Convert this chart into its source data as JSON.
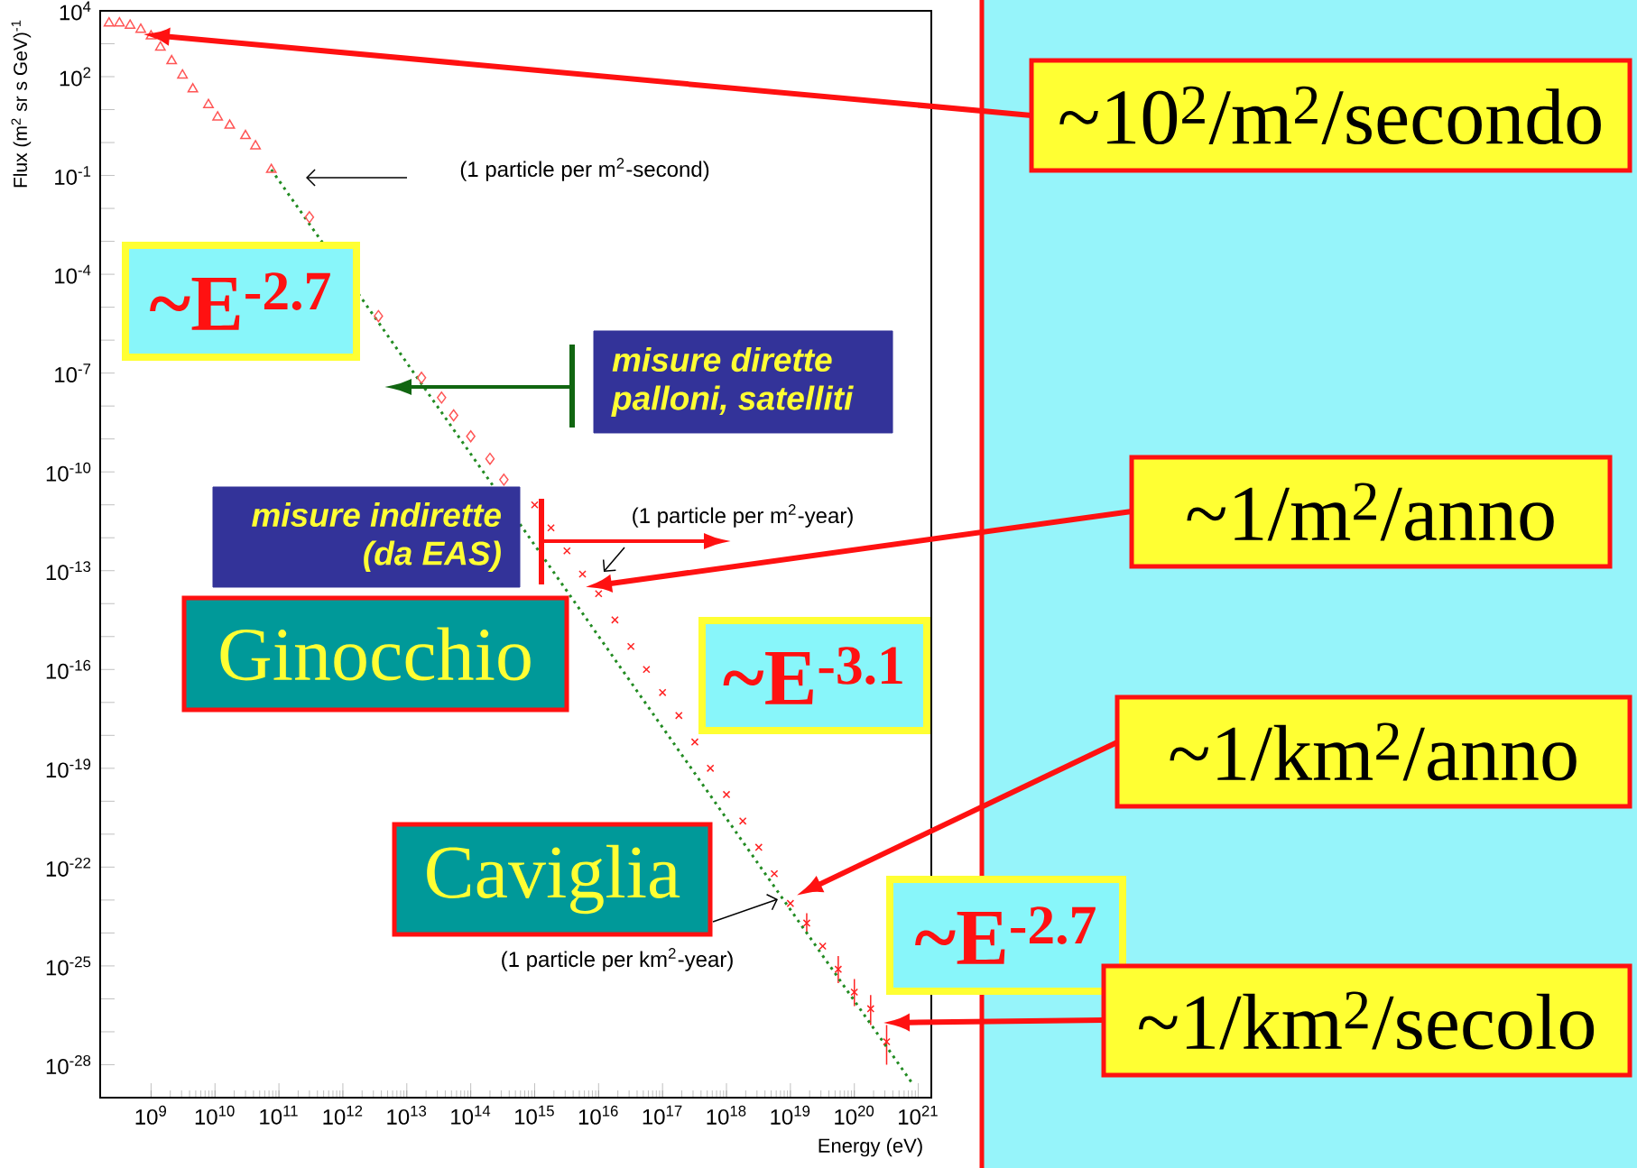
{
  "chart_data": {
    "type": "scatter",
    "xlabel": "Energy (eV)",
    "ylabel": "Flux (m$^{2}$ sr s GeV)$^{-1}$",
    "log": "xy",
    "xlim": [
      160000000.0,
      1.6e+21
    ],
    "ylim": [
      1e-29,
      10000.0
    ],
    "xticks": [
      {
        "value": 1000000000.0,
        "label": "10$^{9}$"
      },
      {
        "value": 10000000000.0,
        "label": "10$^{10}$"
      },
      {
        "value": 100000000000.0,
        "label": "10$^{11}$"
      },
      {
        "value": 1000000000000.0,
        "label": "10$^{12}$"
      },
      {
        "value": 10000000000000.0,
        "label": "10$^{13}$"
      },
      {
        "value": 100000000000000.0,
        "label": "10$^{14}$"
      },
      {
        "value": 1000000000000000.0,
        "label": "10$^{15}$"
      },
      {
        "value": 1e+16,
        "label": "10$^{16}$"
      },
      {
        "value": 1e+17,
        "label": "10$^{17}$"
      },
      {
        "value": 1e+18,
        "label": "10$^{18}$"
      },
      {
        "value": 1e+19,
        "label": "10$^{19}$"
      },
      {
        "value": 1e+20,
        "label": "10$^{20}$"
      },
      {
        "value": 1e+21,
        "label": "10$^{21}$"
      }
    ],
    "yticks": [
      {
        "value": 10000.0,
        "label": "10$^{4}$"
      },
      {
        "value": 1000.0,
        "label": null
      },
      {
        "value": 100.0,
        "label": "10$^{2}$"
      },
      {
        "value": 10.0,
        "label": null
      },
      {
        "value": 1,
        "label": null
      },
      {
        "value": 0.1,
        "label": "10$^{-1}$"
      },
      {
        "value": 0.01,
        "label": null
      },
      {
        "value": 0.001,
        "label": null
      },
      {
        "value": 0.0001,
        "label": "10$^{-4}$"
      },
      {
        "value": 1e-05,
        "label": null
      },
      {
        "value": 1e-06,
        "label": null
      },
      {
        "value": 1e-07,
        "label": "10$^{-7}$"
      },
      {
        "value": 1e-08,
        "label": null
      },
      {
        "value": 1e-09,
        "label": null
      },
      {
        "value": 1e-10,
        "label": "10$^{-10}$"
      },
      {
        "value": 1e-11,
        "label": null
      },
      {
        "value": 1e-12,
        "label": null
      },
      {
        "value": 1e-13,
        "label": "10$^{-13}$"
      },
      {
        "value": 1e-14,
        "label": null
      },
      {
        "value": 1e-15,
        "label": null
      },
      {
        "value": 1e-16,
        "label": "10$^{-16}$"
      },
      {
        "value": 1e-17,
        "label": null
      },
      {
        "value": 1e-18,
        "label": null
      },
      {
        "value": 1e-19,
        "label": "10$^{-19}$"
      },
      {
        "value": 1e-20,
        "label": null
      },
      {
        "value": 1e-21,
        "label": null
      },
      {
        "value": 1e-22,
        "label": "10$^{-22}$"
      },
      {
        "value": 1e-23,
        "label": null
      },
      {
        "value": 1e-24,
        "label": null
      },
      {
        "value": 1e-25,
        "label": "10$^{-25}$"
      },
      {
        "value": 1e-26,
        "label": null
      },
      {
        "value": 1e-27,
        "label": null
      },
      {
        "value": 1e-28,
        "label": "10$^{-28}$"
      }
    ],
    "series": [
      {
        "color": "#ff5555",
        "marker": "triangle",
        "x": [
          220000000.0,
          320000000.0,
          470000000.0,
          690000000.0,
          1000000000.0,
          1400000000.0,
          2100000000.0,
          3100000000.0,
          4500000000.0,
          7900000000.0,
          11000000000.0,
          17000000000.0,
          30000000000.0,
          43000000000.0,
          76000000000.0
        ],
        "values": [
          4200.0,
          4200.0,
          3600.0,
          2700.0,
          1700.0,
          780.0,
          300.0,
          110.0,
          42,
          14,
          5.9,
          3.3,
          1.6,
          0.78,
          0.15
        ]
      },
      {
        "color": "#ff5555",
        "marker": "diamond",
        "x": [
          300000000000.0,
          3600000000000.0,
          17000000000000.0,
          35000000000000.0,
          54000000000000.0,
          100000000000000.0,
          200000000000000.0,
          330000000000000.0
        ],
        "values": [
          0.0054,
          5.4e-06,
          7.2e-08,
          1.8e-08,
          5.2e-09,
          1.2e-09,
          2.5e-10,
          5.8e-11
        ]
      },
      {
        "color": "#ff2222",
        "marker": "cross",
        "x": [
          1000000000000000.0,
          1800000000000000.0,
          3200000000000000.0,
          5600000000000000.0,
          1e+16,
          1.8e+16,
          3.2e+16,
          5.6e+16,
          1e+17,
          1.8e+17,
          3.2e+17,
          5.6e+17,
          1e+18,
          1.8e+18,
          3.2e+18,
          5.6e+18,
          1e+19,
          1.8e+19,
          3.2e+19,
          5.6e+19,
          1e+20,
          1.8e+20,
          3.2e+20
        ],
        "values": [
          1e-11,
          2e-12,
          4e-13,
          7.9e-14,
          2e-14,
          3.2e-15,
          5e-16,
          1e-16,
          2e-17,
          4e-18,
          6.3e-19,
          1e-19,
          1.6e-20,
          2.5e-21,
          4e-22,
          6.3e-23,
          7.9e-24,
          2e-24,
          4e-25,
          7.9e-26,
          1.6e-26,
          5e-27,
          5e-28
        ],
        "errors": [
          null,
          null,
          null,
          null,
          null,
          null,
          null,
          null,
          null,
          null,
          null,
          null,
          null,
          null,
          null,
          null,
          null,
          [
            1e-24,
            4e-24
          ],
          null,
          [
            3e-26,
            2e-25
          ],
          [
            6e-27,
            4e-26
          ],
          [
            1.6e-27,
            1.3e-26
          ],
          [
            1e-28,
            1.6e-27
          ]
        ]
      },
      {
        "type": "line",
        "color": "#228b22",
        "line_style": "dotted",
        "x": [
          76000000000.0,
          8.3e+20
        ],
        "values": [
          0.15,
          2.5e-29
        ]
      }
    ],
    "annotations": [
      "(1 particle per m$^{2}$-second)",
      "(1 particle per m$^{2}$-year)",
      "(1 particle per km$^{2}$-year)",
      "~E$^{-2.7}$",
      "misure dirette palloni, satelliti",
      "misure indirette (da EAS)",
      "Ginocchio",
      "~E$^{-3.1}$",
      "Caviglia",
      "~E$^{-2.7}$",
      "~10$^{2}$/m$^{2}$/secondo",
      "~1/m$^{2}$/anno",
      "~1/km$^{2}$/anno",
      "~1/km$^{2}$/secolo"
    ]
  }
}
